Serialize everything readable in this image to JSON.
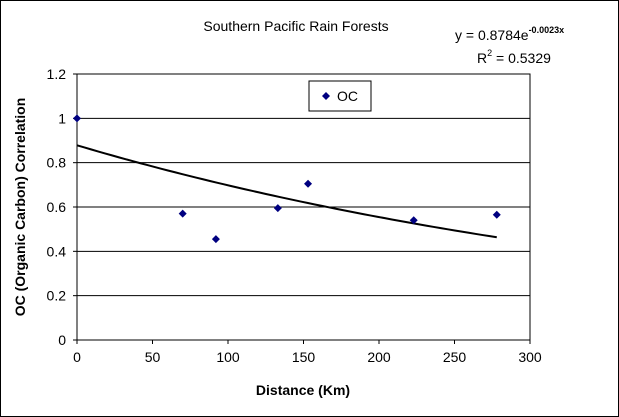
{
  "chart_data": {
    "type": "scatter",
    "title": "Southern Pacific Rain Forests",
    "xlabel": "Distance (Km)",
    "ylabel": "OC (Organic Carbon) Correlation",
    "xlim": [
      0,
      300
    ],
    "ylim": [
      0,
      1.2
    ],
    "x_ticks": [
      "0",
      "50",
      "100",
      "150",
      "200",
      "250",
      "300"
    ],
    "y_ticks": [
      "0",
      "0.2",
      "0.4",
      "0.6",
      "0.8",
      "1",
      "1.2"
    ],
    "grid": "horizontal",
    "legend_position": "top-center",
    "series": [
      {
        "name": "OC",
        "color": "#000080",
        "marker": "diamond",
        "points": [
          {
            "x": 0,
            "y": 1.0
          },
          {
            "x": 70,
            "y": 0.57
          },
          {
            "x": 92,
            "y": 0.455
          },
          {
            "x": 133,
            "y": 0.595
          },
          {
            "x": 153,
            "y": 0.705
          },
          {
            "x": 223,
            "y": 0.54
          },
          {
            "x": 278,
            "y": 0.565
          }
        ]
      }
    ],
    "trendline": {
      "type": "exponential",
      "coef_a": 0.8784,
      "coef_b": -0.0023,
      "x_range": [
        0,
        278
      ],
      "equation_main": "y = 0.8784e",
      "equation_exponent": "-0.0023x",
      "r2_label": "R",
      "r2_superscript": "2",
      "r2_value": " = 0.5329"
    }
  }
}
